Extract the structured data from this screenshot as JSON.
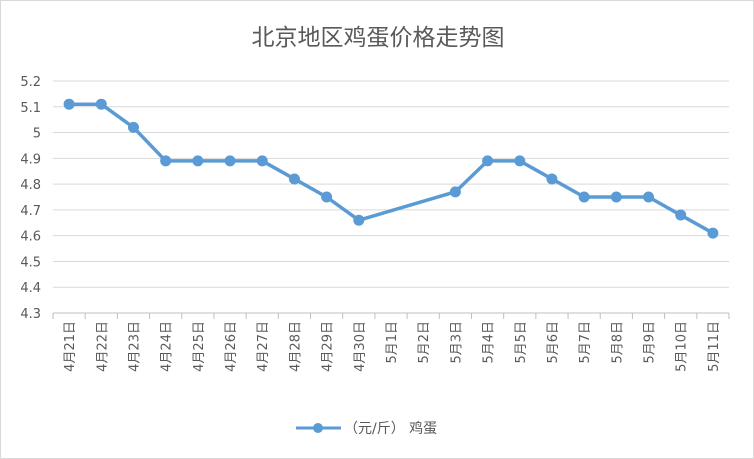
{
  "chart_data": {
    "type": "line",
    "title": "北京地区鸡蛋价格走势图",
    "categories": [
      "4月21日",
      "4月22日",
      "4月23日",
      "4月24日",
      "4月25日",
      "4月26日",
      "4月27日",
      "4月28日",
      "4月29日",
      "4月30日",
      "5月1日",
      "5月2日",
      "5月3日",
      "5月4日",
      "5月5日",
      "5月6日",
      "5月7日",
      "5月8日",
      "5月9日",
      "5月10日",
      "5月11日"
    ],
    "series": [
      {
        "name": "（元/斤） 鸡蛋",
        "values": [
          5.11,
          5.11,
          5.02,
          4.89,
          4.89,
          4.89,
          4.89,
          4.82,
          4.75,
          4.66,
          null,
          null,
          4.77,
          4.89,
          4.89,
          4.82,
          4.75,
          4.75,
          4.75,
          4.68,
          4.61
        ],
        "color": "#5b9bd5"
      }
    ],
    "ylim": [
      4.3,
      5.2
    ],
    "yticks": [
      "4.3",
      "4.4",
      "4.5",
      "4.6",
      "4.7",
      "4.8",
      "4.9",
      "5",
      "5.1",
      "5.2"
    ],
    "gaps_connected": true,
    "grid": true,
    "legend_position": "bottom"
  }
}
